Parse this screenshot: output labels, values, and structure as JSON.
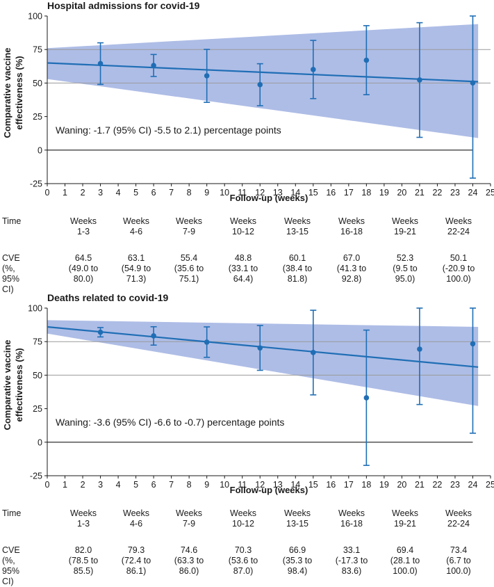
{
  "chart_data": [
    {
      "type": "line",
      "title": "Hospital admissions for covid-19",
      "xlabel": "Follow-up (weeks)",
      "ylabel": "Comparative vaccine effectiveness (%)",
      "xlim": [
        0,
        25
      ],
      "ylim": [
        -25,
        100
      ],
      "xticks": [
        "0",
        "1",
        "2",
        "3",
        "4",
        "5",
        "6",
        "7",
        "8",
        "9",
        "10",
        "11",
        "12",
        "13",
        "14",
        "15",
        "16",
        "17",
        "18",
        "19",
        "20",
        "21",
        "22",
        "23",
        "24",
        "25"
      ],
      "yticks": [
        "-25",
        "0",
        "25",
        "50",
        "75",
        "100"
      ],
      "grid_y": [
        50,
        75
      ],
      "zero_line": 0,
      "trend": {
        "x": [
          0,
          24.3
        ],
        "y": [
          65,
          51
        ]
      },
      "band": {
        "x": [
          0,
          24.3
        ],
        "upper": [
          76,
          94
        ],
        "lower": [
          53,
          9
        ]
      },
      "points": [
        {
          "x": 3,
          "y": 64.5,
          "lo": 49.0,
          "hi": 80.0
        },
        {
          "x": 6,
          "y": 63.1,
          "lo": 54.9,
          "hi": 71.3
        },
        {
          "x": 9,
          "y": 55.4,
          "lo": 35.6,
          "hi": 75.1
        },
        {
          "x": 12,
          "y": 48.8,
          "lo": 33.1,
          "hi": 64.4
        },
        {
          "x": 15,
          "y": 60.1,
          "lo": 38.4,
          "hi": 81.8
        },
        {
          "x": 18,
          "y": 67.0,
          "lo": 41.3,
          "hi": 92.8
        },
        {
          "x": 21,
          "y": 52.3,
          "lo": 9.5,
          "hi": 95.0
        },
        {
          "x": 24,
          "y": 50.1,
          "lo": -20.9,
          "hi": 100.0
        }
      ],
      "annotation": "Waning: -1.7 (95% CI) -5.5 to 2.1) percentage points"
    },
    {
      "type": "line",
      "title": "Deaths related to covid-19",
      "xlabel": "Follow-up (weeks)",
      "ylabel": "Comparative vaccine effectiveness (%)",
      "xlim": [
        0,
        25
      ],
      "ylim": [
        -25,
        100
      ],
      "xticks": [
        "0",
        "1",
        "2",
        "3",
        "4",
        "5",
        "6",
        "7",
        "8",
        "9",
        "10",
        "11",
        "12",
        "13",
        "14",
        "15",
        "16",
        "17",
        "18",
        "19",
        "20",
        "21",
        "22",
        "23",
        "24",
        "25"
      ],
      "yticks": [
        "-25",
        "0",
        "25",
        "50",
        "75",
        "100"
      ],
      "grid_y": [
        50,
        75
      ],
      "zero_line": 0,
      "trend": {
        "x": [
          0,
          24.3
        ],
        "y": [
          86,
          56
        ]
      },
      "band": {
        "x": [
          0,
          24.3
        ],
        "upper": [
          91,
          86
        ],
        "lower": [
          81,
          27
        ]
      },
      "points": [
        {
          "x": 3,
          "y": 82.0,
          "lo": 78.5,
          "hi": 85.5
        },
        {
          "x": 6,
          "y": 79.3,
          "lo": 72.4,
          "hi": 86.1
        },
        {
          "x": 9,
          "y": 74.6,
          "lo": 63.3,
          "hi": 86.0
        },
        {
          "x": 12,
          "y": 70.3,
          "lo": 53.6,
          "hi": 87.0
        },
        {
          "x": 15,
          "y": 66.9,
          "lo": 35.3,
          "hi": 98.4
        },
        {
          "x": 18,
          "y": 33.1,
          "lo": -17.3,
          "hi": 83.6
        },
        {
          "x": 21,
          "y": 69.4,
          "lo": 28.1,
          "hi": 100.0
        },
        {
          "x": 24,
          "y": 73.4,
          "lo": 6.7,
          "hi": 100.0
        }
      ],
      "annotation": "Waning: -3.6 (95% CI) -6.6 to -0.7) percentage points"
    }
  ],
  "tables": [
    {
      "time_label": "Time",
      "cve_label": "CVE\n(%, 95% CI)",
      "weeks": [
        "Weeks\n1-3",
        "Weeks\n4-6",
        "Weeks\n7-9",
        "Weeks\n10-12",
        "Weeks\n13-15",
        "Weeks\n16-18",
        "Weeks\n19-21",
        "Weeks\n22-24"
      ],
      "cve": [
        "64.5\n(49.0 to\n80.0)",
        "63.1\n(54.9 to\n71.3)",
        "55.4\n(35.6 to\n75.1)",
        "48.8\n(33.1 to\n64.4)",
        "60.1\n(38.4 to\n81.8)",
        "67.0\n(41.3 to\n92.8)",
        "52.3\n(9.5 to\n95.0)",
        "50.1\n(-20.9 to\n100.0)"
      ]
    },
    {
      "time_label": "Time",
      "cve_label": "CVE\n(%, 95% CI)",
      "weeks": [
        "Weeks\n1-3",
        "Weeks\n4-6",
        "Weeks\n7-9",
        "Weeks\n10-12",
        "Weeks\n13-15",
        "Weeks\n16-18",
        "Weeks\n19-21",
        "Weeks\n22-24"
      ],
      "cve": [
        "82.0\n(78.5 to\n85.5)",
        "79.3\n(72.4 to\n86.1)",
        "74.6\n(63.3 to\n86.0)",
        "70.3\n(53.6 to\n87.0)",
        "66.9\n(35.3 to\n98.4)",
        "33.1\n(-17.3 to\n83.6)",
        "69.4\n(28.1 to\n100.0)",
        "73.4\n(6.7 to\n100.0)"
      ]
    }
  ],
  "colors": {
    "line": "#1f6eb5",
    "band": "#aebde6",
    "grid": "#9a9a9a",
    "axis": "#1a1a1a"
  }
}
